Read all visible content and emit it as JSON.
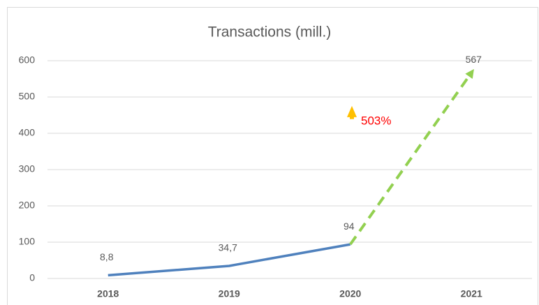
{
  "chart_data": {
    "type": "line",
    "title": "Transactions (mill.)",
    "categories": [
      "2018",
      "2019",
      "2020",
      "2021"
    ],
    "series": [
      {
        "color": "#4f81bd",
        "dashed": false,
        "values": [
          8.8,
          34.7,
          94,
          null
        ],
        "value_labels": [
          "8,8",
          "34,7",
          "94",
          null
        ]
      },
      {
        "color": "#92d050",
        "dashed": true,
        "values": [
          null,
          null,
          94,
          567
        ],
        "value_labels": [
          null,
          null,
          null,
          "567"
        ]
      }
    ],
    "annotations": [
      {
        "text": "503%",
        "color": "#ff0000"
      }
    ],
    "ylim": [
      0,
      600
    ],
    "yticks": [
      0,
      100,
      200,
      300,
      400,
      500,
      600
    ],
    "grid": true
  }
}
